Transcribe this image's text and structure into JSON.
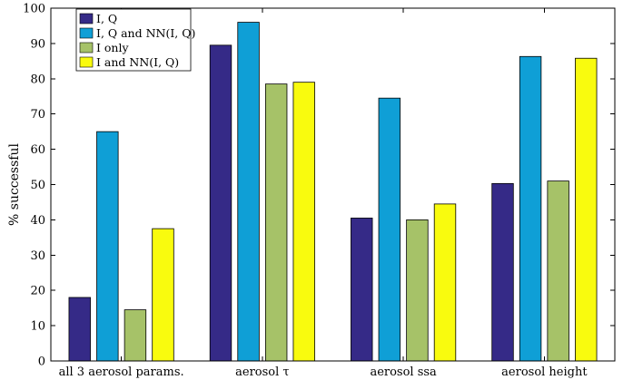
{
  "chart_data": {
    "type": "bar",
    "categories": [
      "all 3 aerosol params.",
      "aerosol τ",
      "aerosol ssa",
      "aerosol height"
    ],
    "series": [
      {
        "name": "I, Q",
        "color": "#352a87",
        "values": [
          18,
          89.5,
          40.5,
          50.3
        ]
      },
      {
        "name": "I, Q and NN(I, Q)",
        "color": "#0f9fd6",
        "values": [
          65,
          96,
          74.5,
          86.3
        ]
      },
      {
        "name": "I only",
        "color": "#a6c268",
        "values": [
          14.5,
          78.5,
          40,
          51
        ]
      },
      {
        "name": "I and NN(I, Q)",
        "color": "#f9fb0e",
        "values": [
          37.5,
          79,
          44.5,
          85.8
        ]
      }
    ],
    "xlabel": "",
    "ylabel": "% successful",
    "ylim": [
      0,
      100
    ],
    "yticks": [
      "0",
      "10",
      "20",
      "30",
      "40",
      "50",
      "60",
      "70",
      "80",
      "90",
      "100"
    ],
    "grid": false,
    "legend_position": "top-left"
  }
}
